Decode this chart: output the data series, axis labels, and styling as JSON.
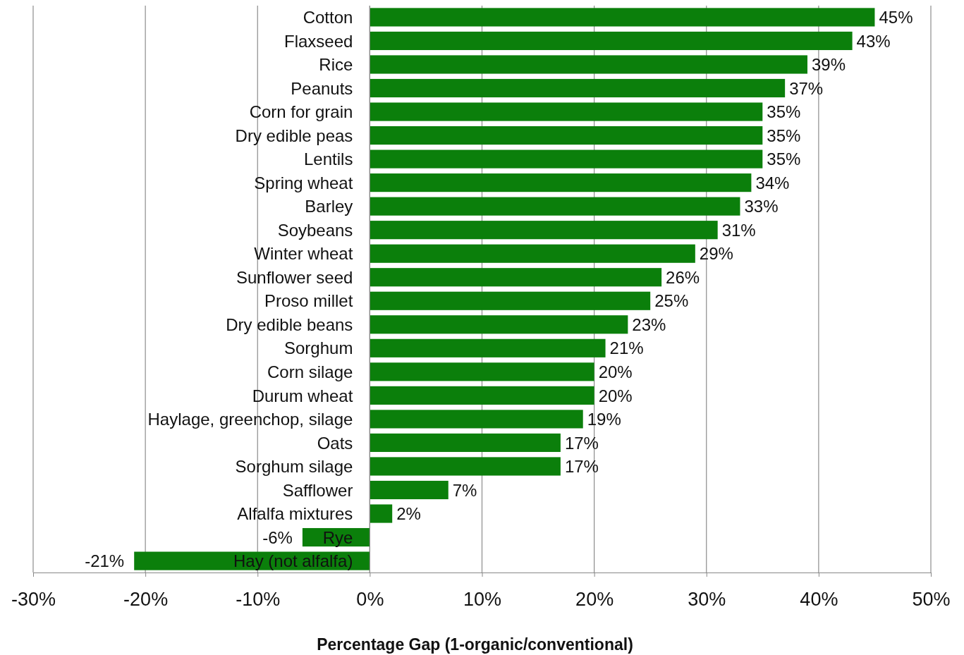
{
  "chart_data": {
    "type": "bar",
    "orientation": "horizontal",
    "xlabel": "Percentage Gap (1-organic/conventional)",
    "categories": [
      "Cotton",
      "Flaxseed",
      "Rice",
      "Peanuts",
      "Corn for grain",
      "Dry edible peas",
      "Lentils",
      "Spring wheat",
      "Barley",
      "Soybeans",
      "Winter wheat",
      "Sunflower seed",
      "Proso millet",
      "Dry edible beans",
      "Sorghum",
      "Corn silage",
      "Durum wheat",
      "Haylage, greenchop, silage",
      "Oats",
      "Sorghum silage",
      "Safflower",
      "Alfalfa mixtures",
      "Rye",
      "Hay (not alfalfa)"
    ],
    "values": [
      45,
      43,
      39,
      37,
      35,
      35,
      35,
      34,
      33,
      31,
      29,
      26,
      25,
      23,
      21,
      20,
      20,
      19,
      17,
      17,
      7,
      2,
      -6,
      -21
    ],
    "value_labels": [
      "45%",
      "43%",
      "39%",
      "37%",
      "35%",
      "35%",
      "35%",
      "34%",
      "33%",
      "31%",
      "29%",
      "26%",
      "25%",
      "23%",
      "21%",
      "20%",
      "20%",
      "19%",
      "17%",
      "17%",
      "7%",
      "2%",
      "-6%",
      "-21%"
    ],
    "color": "#0b7f0b",
    "xlim": [
      -30,
      50
    ],
    "xticks": [
      {
        "value": -30,
        "label": "-30%"
      },
      {
        "value": -20,
        "label": "-20%"
      },
      {
        "value": -10,
        "label": "-10%"
      },
      {
        "value": 0,
        "label": "0%"
      },
      {
        "value": 10,
        "label": "10%"
      },
      {
        "value": 20,
        "label": "20%"
      },
      {
        "value": 30,
        "label": "30%"
      },
      {
        "value": 40,
        "label": "40%"
      },
      {
        "value": 50,
        "label": "50%"
      }
    ],
    "grid": "x"
  }
}
